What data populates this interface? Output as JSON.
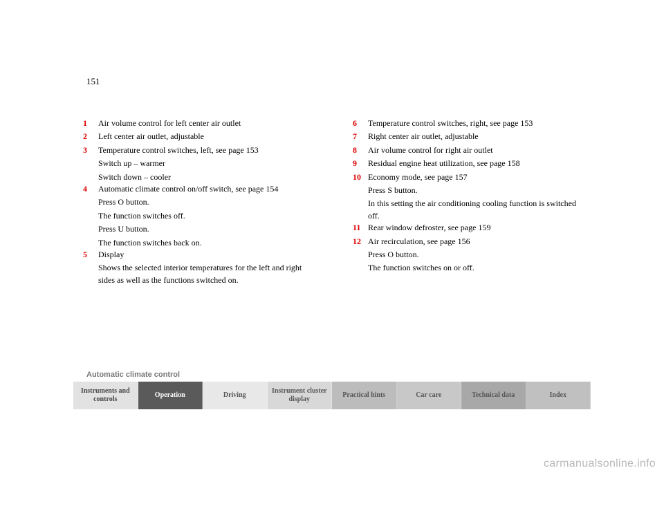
{
  "page_number": "151",
  "left_column": [
    {
      "n": "1",
      "t": "Air volume control for left center air outlet"
    },
    {
      "n": "2",
      "t": "Left center air outlet, adjustable"
    },
    {
      "n": "3",
      "t": "Temperature control switches, left, see page 153"
    }
  ],
  "left_notes_1": [
    "Switch up – warmer",
    "Switch down – cooler"
  ],
  "left_column_2": [
    {
      "n": "4",
      "t": "Automatic climate control on/off switch, see page 154"
    }
  ],
  "left_notes_2": [
    "Press O button.",
    "The function switches off.",
    "Press U button.",
    "The function switches back on."
  ],
  "left_column_3": [
    {
      "n": "5",
      "t": "Display"
    }
  ],
  "left_notes_3": [
    "Shows the selected interior temperatures for the left and right sides as well as the functions switched on."
  ],
  "right_column": [
    {
      "n": "6",
      "t": "Temperature control switches, right, see page 153"
    },
    {
      "n": "7",
      "t": "Right center air outlet, adjustable"
    },
    {
      "n": "8",
      "t": "Air volume control for right air outlet"
    },
    {
      "n": "9",
      "t": "Residual engine heat utilization, see page 158"
    },
    {
      "n": "10",
      "t": "Economy mode, see page 157"
    }
  ],
  "right_notes_1": [
    "Press S button.",
    "In this setting the air conditioning cooling function is switched off."
  ],
  "right_column_2": [
    {
      "n": "11",
      "t": "Rear window defroster, see page 159"
    },
    {
      "n": "12",
      "t": "Air recirculation, see page 156"
    }
  ],
  "right_notes_2": [
    "Press O button.",
    "The function switches on or off."
  ],
  "section_title": "Automatic climate control",
  "nav": {
    "items": [
      {
        "label": "Instruments and controls",
        "bg": "#e2e2e2",
        "fg": "#444444"
      },
      {
        "label": "Operation",
        "bg": "#5a5a5a",
        "fg": "#ffffff"
      },
      {
        "label": "Driving",
        "bg": "#e8e8e8",
        "fg": "#555555"
      },
      {
        "label": "Instrument cluster display",
        "bg": "#d8d8d8",
        "fg": "#555555"
      },
      {
        "label": "Practical hints",
        "bg": "#bcbcbc",
        "fg": "#555555"
      },
      {
        "label": "Car care",
        "bg": "#c8c8c8",
        "fg": "#555555"
      },
      {
        "label": "Technical data",
        "bg": "#a8a8a8",
        "fg": "#555555"
      },
      {
        "label": "Index",
        "bg": "#c0c0c0",
        "fg": "#555555"
      }
    ]
  },
  "watermark": "carmanualsonline.info"
}
